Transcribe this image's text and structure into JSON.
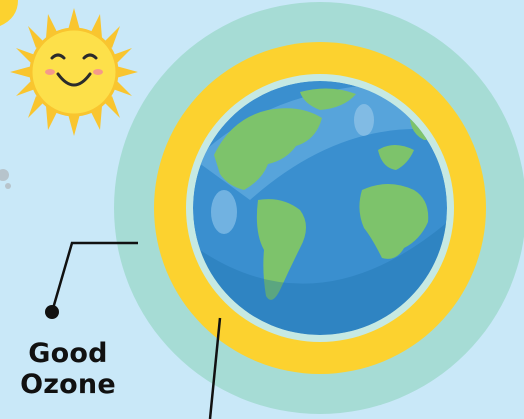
{
  "labels": {
    "good_ozone_line1": "Good",
    "good_ozone_line2": "Ozone"
  },
  "colors": {
    "sky": "#c9e8f8",
    "outer_atmosphere": "#a6dcd5",
    "ozone_layer": "#fcd22f",
    "ocean": "#3a8fcf",
    "land": "#7dc36b",
    "sun": "#fde04a",
    "sun_rays": "#f9c52f",
    "leader_line": "#111111"
  },
  "icons": {
    "sun": "smiling-sun-icon",
    "earth": "earth-globe-icon",
    "pointer": "leader-dot-icon"
  }
}
